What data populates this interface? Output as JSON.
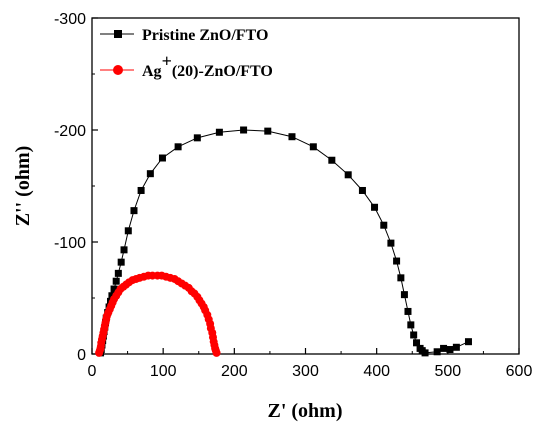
{
  "chart_data": {
    "type": "scatter",
    "title": "",
    "xlabel": "Z' (ohm)",
    "ylabel": "Z'' (ohm)",
    "xlim": [
      0,
      600
    ],
    "ylim": [
      0,
      -300
    ],
    "y_axis_inverted": true,
    "xticks": [
      "0",
      "100",
      "200",
      "300",
      "400",
      "500",
      "600"
    ],
    "yticks": [
      "0",
      "-100",
      "-200",
      "-300"
    ],
    "grid": false,
    "legend_position": "top-left",
    "series": [
      {
        "name": "Pristine ZnO/FTO",
        "marker": "square",
        "color": "#000000",
        "line": true,
        "points": [
          [
            12,
            -1
          ],
          [
            13,
            -4
          ],
          [
            14,
            -8
          ],
          [
            15,
            -12
          ],
          [
            16,
            -16
          ],
          [
            17,
            -20
          ],
          [
            18,
            -24
          ],
          [
            19,
            -28
          ],
          [
            20,
            -32
          ],
          [
            22,
            -37
          ],
          [
            24,
            -42
          ],
          [
            26,
            -47
          ],
          [
            28,
            -52
          ],
          [
            31,
            -58
          ],
          [
            34,
            -65
          ],
          [
            37,
            -72
          ],
          [
            41,
            -82
          ],
          [
            45,
            -93
          ],
          [
            51,
            -110
          ],
          [
            59,
            -128
          ],
          [
            69,
            -146
          ],
          [
            82,
            -161
          ],
          [
            99,
            -175
          ],
          [
            121,
            -185
          ],
          [
            148,
            -193
          ],
          [
            179,
            -198
          ],
          [
            213,
            -200
          ],
          [
            247,
            -199
          ],
          [
            281,
            -194
          ],
          [
            311,
            -185
          ],
          [
            337,
            -173
          ],
          [
            360,
            -160
          ],
          [
            380,
            -146
          ],
          [
            397,
            -131
          ],
          [
            410,
            -115
          ],
          [
            420,
            -99
          ],
          [
            428,
            -83
          ],
          [
            434,
            -68
          ],
          [
            439,
            -53
          ],
          [
            444,
            -38
          ],
          [
            448,
            -26
          ],
          [
            452,
            -17
          ],
          [
            456,
            -10
          ],
          [
            461,
            -5
          ],
          [
            464,
            -3
          ],
          [
            468,
            -1
          ],
          [
            485,
            -2
          ],
          [
            494,
            -5
          ],
          [
            503,
            -4
          ],
          [
            512,
            -6
          ],
          [
            529,
            -11
          ]
        ]
      },
      {
        "name": "Ag+(20)-ZnO/FTO",
        "legend_label_parts": [
          "Ag",
          "+",
          "(20)-ZnO/FTO"
        ],
        "marker": "circle",
        "color": "#ff0000",
        "line": true,
        "points": [
          [
            10,
            -1
          ],
          [
            11,
            -3
          ],
          [
            12,
            -5
          ],
          [
            12.5,
            -7
          ],
          [
            13,
            -10
          ],
          [
            14,
            -13
          ],
          [
            15,
            -16
          ],
          [
            16,
            -19
          ],
          [
            17,
            -22
          ],
          [
            18,
            -25
          ],
          [
            19,
            -28
          ],
          [
            20,
            -31
          ],
          [
            21,
            -34
          ],
          [
            23,
            -37
          ],
          [
            25,
            -40
          ],
          [
            27,
            -43
          ],
          [
            29,
            -46
          ],
          [
            31,
            -49
          ],
          [
            34,
            -52
          ],
          [
            37,
            -55
          ],
          [
            40,
            -58
          ],
          [
            44,
            -60
          ],
          [
            48,
            -62
          ],
          [
            52,
            -64
          ],
          [
            57,
            -66
          ],
          [
            62,
            -67
          ],
          [
            67,
            -68
          ],
          [
            73,
            -69
          ],
          [
            79,
            -70
          ],
          [
            85,
            -70
          ],
          [
            92,
            -70
          ],
          [
            98,
            -70
          ],
          [
            104,
            -69
          ],
          [
            110,
            -68
          ],
          [
            116,
            -67
          ],
          [
            121,
            -65
          ],
          [
            126,
            -63
          ],
          [
            131,
            -61
          ],
          [
            136,
            -59
          ],
          [
            140,
            -56
          ],
          [
            144,
            -54
          ],
          [
            148,
            -51
          ],
          [
            151,
            -48
          ],
          [
            154,
            -45
          ],
          [
            157,
            -42
          ],
          [
            159,
            -39
          ],
          [
            162,
            -35
          ],
          [
            164,
            -31
          ],
          [
            166,
            -27
          ],
          [
            167,
            -23
          ],
          [
            169,
            -19
          ],
          [
            170,
            -15
          ],
          [
            171,
            -11
          ],
          [
            172,
            -8
          ],
          [
            173,
            -5
          ],
          [
            174,
            -3
          ],
          [
            175,
            -1
          ]
        ]
      }
    ]
  }
}
